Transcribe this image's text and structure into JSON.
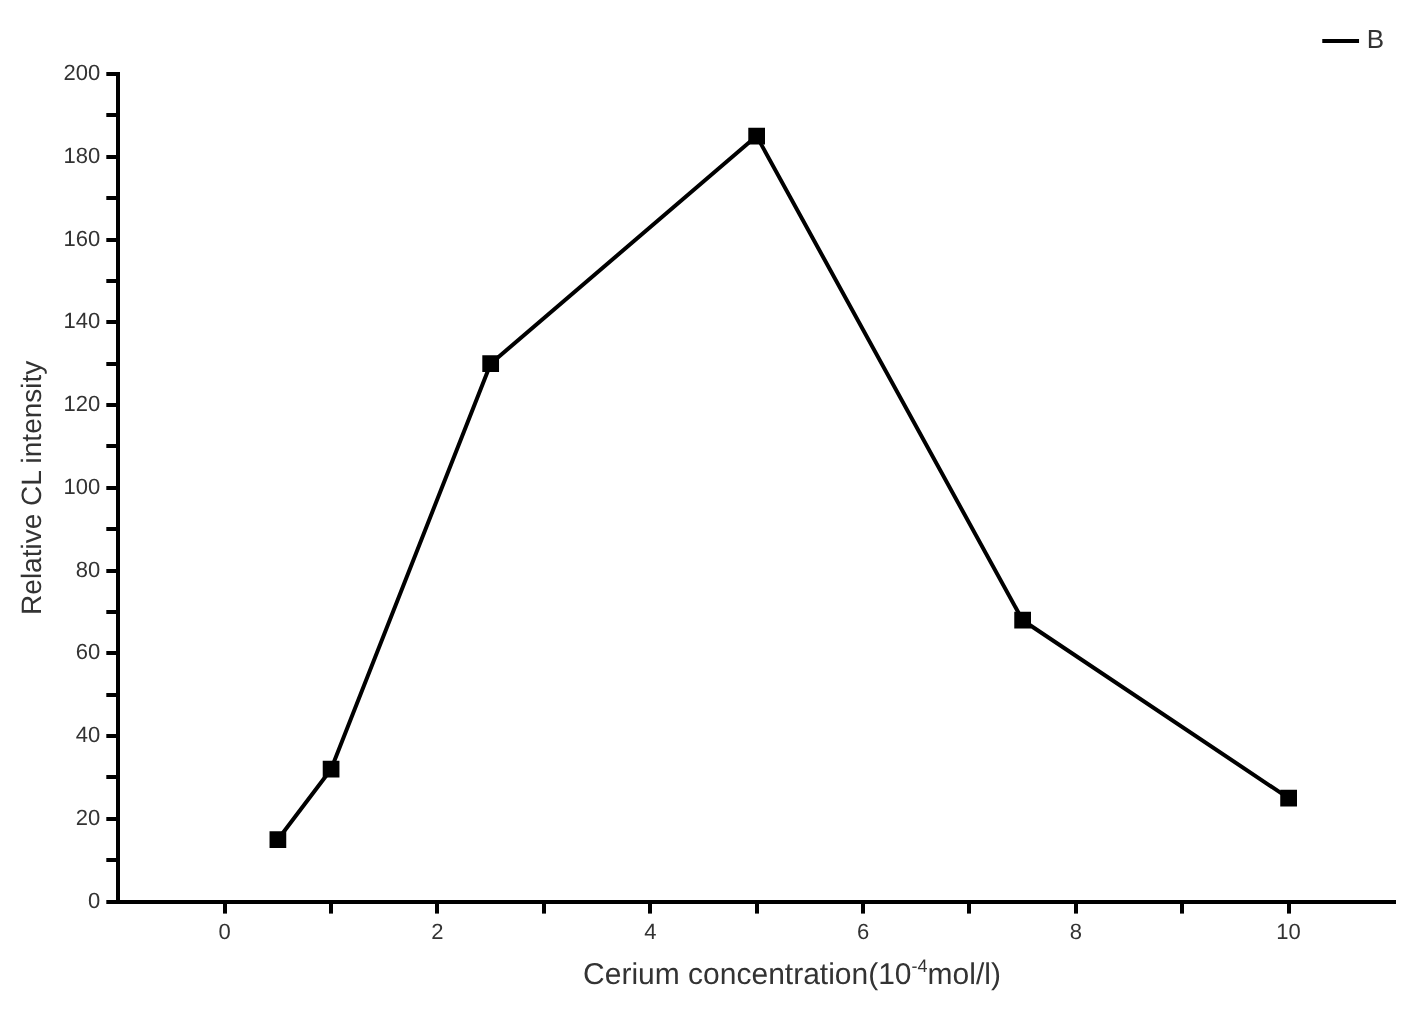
{
  "chart_data": {
    "type": "line",
    "xlabel": "Cerium concentration(10$^{-4}$mol/l)",
    "ylabel": "Relative CL intensity",
    "x": [
      0.5,
      1,
      2.5,
      5,
      7.5,
      10
    ],
    "series": [
      {
        "name": "B",
        "color": "#000000",
        "values": [
          15,
          32,
          130,
          185,
          68,
          25
        ]
      }
    ],
    "xlim": [
      -1,
      11
    ],
    "xticks": [
      0,
      {
        "value": 1,
        "label": null
      },
      2,
      {
        "value": 3,
        "label": null
      },
      4,
      {
        "value": 5,
        "label": null
      },
      6,
      {
        "value": 7,
        "label": null
      },
      8,
      {
        "value": 9,
        "label": null
      },
      10
    ],
    "ylim": [
      0,
      200
    ],
    "yticks": [
      0,
      {
        "value": 10,
        "label": null
      },
      20,
      {
        "value": 30,
        "label": null
      },
      40,
      {
        "value": 50,
        "label": null
      },
      60,
      {
        "value": 70,
        "label": null
      },
      80,
      {
        "value": 90,
        "label": null
      },
      100,
      {
        "value": 110,
        "label": null
      },
      120,
      {
        "value": 130,
        "label": null
      },
      140,
      {
        "value": 150,
        "label": null
      },
      160,
      {
        "value": 170,
        "label": null
      },
      180,
      {
        "value": 190,
        "label": null
      },
      200
    ],
    "grid": false,
    "legend": "top right",
    "marker": "square",
    "line_style": "solid"
  }
}
